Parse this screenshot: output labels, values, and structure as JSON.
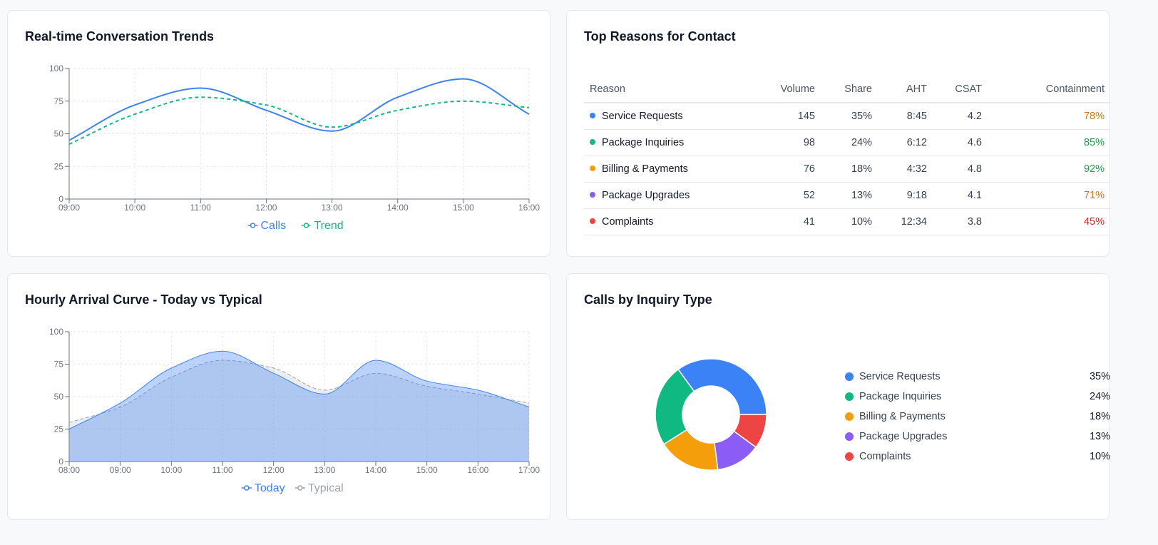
{
  "colors": {
    "blue": "#3b82f6",
    "green": "#10b981",
    "orange": "#f59e0b",
    "purple": "#8b5cf6",
    "red": "#ef4444",
    "gray": "#9ca3af",
    "containment_high": "#16a34a",
    "containment_mid": "#d97706",
    "containment_low": "#dc2626"
  },
  "panels": {
    "trends": {
      "title": "Real-time Conversation Trends"
    },
    "reasons": {
      "title": "Top Reasons for Contact"
    },
    "arrival": {
      "title": "Hourly Arrival Curve - Today vs Typical"
    },
    "inquiry": {
      "title": "Calls by Inquiry Type"
    }
  },
  "chart_data": [
    {
      "id": "trends",
      "type": "line",
      "title": "Real-time Conversation Trends",
      "x": [
        "09:00",
        "10:00",
        "11:00",
        "12:00",
        "13:00",
        "14:00",
        "15:00",
        "16:00"
      ],
      "ylim": [
        0,
        100
      ],
      "yticks": [
        0,
        25,
        50,
        75,
        100
      ],
      "grid": true,
      "legend": "bottom-center",
      "series": [
        {
          "name": "Calls",
          "values": [
            45,
            72,
            85,
            68,
            52,
            78,
            92,
            65
          ],
          "color": "#3b82f6",
          "dashed": false
        },
        {
          "name": "Trend",
          "values": [
            42,
            65,
            78,
            72,
            55,
            68,
            75,
            70
          ],
          "color": "#10b981",
          "dashed": true
        }
      ]
    },
    {
      "id": "arrival",
      "type": "area",
      "title": "Hourly Arrival Curve - Today vs Typical",
      "x": [
        "08:00",
        "09:00",
        "10:00",
        "11:00",
        "12:00",
        "13:00",
        "14:00",
        "15:00",
        "16:00",
        "17:00"
      ],
      "ylim": [
        0,
        100
      ],
      "yticks": [
        0,
        25,
        50,
        75,
        100
      ],
      "grid": true,
      "legend": "bottom-center",
      "series": [
        {
          "name": "Today",
          "values": [
            25,
            45,
            72,
            85,
            68,
            52,
            78,
            62,
            55,
            42
          ],
          "color": "#3b82f6"
        },
        {
          "name": "Typical",
          "values": [
            30,
            42,
            65,
            78,
            72,
            55,
            68,
            58,
            52,
            45
          ],
          "color": "#9ca3af"
        }
      ]
    },
    {
      "id": "inquiry",
      "type": "pie",
      "title": "Calls by Inquiry Type",
      "donut": true,
      "legend": "right",
      "categories": [
        "Service Requests",
        "Package Inquiries",
        "Billing & Payments",
        "Package Upgrades",
        "Complaints"
      ],
      "values": [
        35,
        24,
        18,
        13,
        10
      ],
      "labels": [
        "35%",
        "24%",
        "18%",
        "13%",
        "10%"
      ],
      "colors": [
        "#3b82f6",
        "#10b981",
        "#f59e0b",
        "#8b5cf6",
        "#ef4444"
      ]
    },
    {
      "id": "reasons",
      "type": "table",
      "title": "Top Reasons for Contact",
      "columns": [
        "Reason",
        "Volume",
        "Share",
        "AHT",
        "CSAT",
        "Containment"
      ],
      "rows": [
        {
          "reason": "Service Requests",
          "volume": "145",
          "share": "35%",
          "aht": "8:45",
          "csat": "4.2",
          "containment": "78%",
          "dot_color": "#3b82f6",
          "containment_color": "#d97706"
        },
        {
          "reason": "Package Inquiries",
          "volume": "98",
          "share": "24%",
          "aht": "6:12",
          "csat": "4.6",
          "containment": "85%",
          "dot_color": "#10b981",
          "containment_color": "#16a34a"
        },
        {
          "reason": "Billing & Payments",
          "volume": "76",
          "share": "18%",
          "aht": "4:32",
          "csat": "4.8",
          "containment": "92%",
          "dot_color": "#f59e0b",
          "containment_color": "#16a34a"
        },
        {
          "reason": "Package Upgrades",
          "volume": "52",
          "share": "13%",
          "aht": "9:18",
          "csat": "4.1",
          "containment": "71%",
          "dot_color": "#8b5cf6",
          "containment_color": "#d97706"
        },
        {
          "reason": "Complaints",
          "volume": "41",
          "share": "10%",
          "aht": "12:34",
          "csat": "3.8",
          "containment": "45%",
          "dot_color": "#ef4444",
          "containment_color": "#dc2626"
        }
      ]
    }
  ]
}
